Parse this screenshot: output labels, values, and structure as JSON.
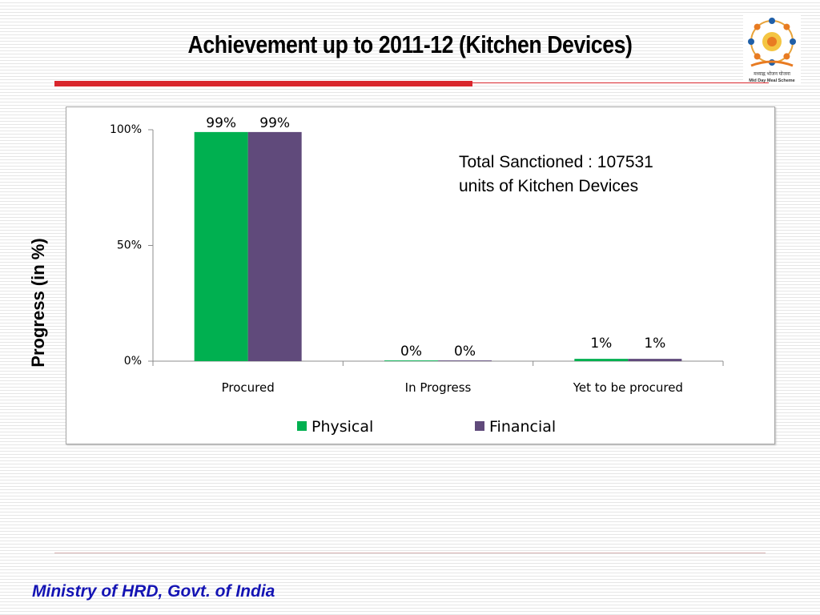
{
  "slide": {
    "title": "Achievement up to 2011-12 (Kitchen Devices)",
    "footer": "Ministry of HRD, Govt. of India",
    "logo_text_hindi": "मध्याह्न भोजन योजना",
    "logo_text_english": "Mid Day Meal Scheme"
  },
  "colors": {
    "accent_red": "#d9262c",
    "footer_blue": "#1414b4",
    "physical": "#00b050",
    "financial": "#604a7b"
  },
  "chart_data": {
    "type": "bar",
    "title": "",
    "ylabel": "Progress (in %)",
    "xlabel": "",
    "annotation": "Total Sanctioned : 107531 units of Kitchen Devices",
    "categories": [
      "Procured",
      "In Progress",
      "Yet to be procured"
    ],
    "series": [
      {
        "name": "Physical",
        "values": [
          99,
          0.3,
          1
        ],
        "labels": [
          "99%",
          "0%",
          "1%"
        ],
        "color": "#00b050"
      },
      {
        "name": "Financial",
        "values": [
          99,
          0.3,
          1
        ],
        "labels": [
          "99%",
          "0%",
          "1%"
        ],
        "color": "#604a7b"
      }
    ],
    "ylim": [
      0,
      100
    ],
    "yticks": [
      {
        "value": 0,
        "label": "0%"
      },
      {
        "value": 50,
        "label": "50%"
      },
      {
        "value": 100,
        "label": "100%"
      }
    ],
    "grid": false,
    "legend_position": "bottom"
  }
}
